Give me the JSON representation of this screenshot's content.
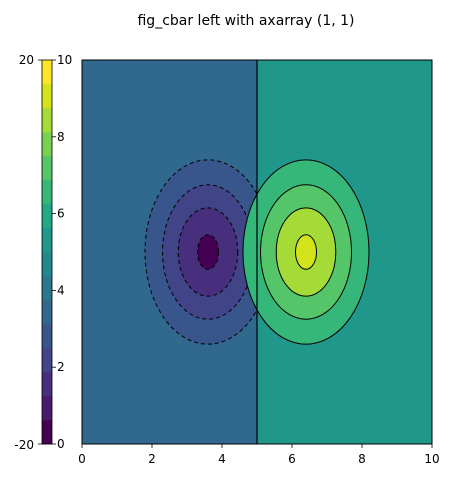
{
  "chart_data": {
    "type": "contour",
    "title": "fig_cbar left with axarray (1, 1)",
    "xlabel": "",
    "ylabel": "",
    "xlim": [
      0,
      10
    ],
    "ylim": [
      0,
      10
    ],
    "x_ticks": [
      "0",
      "2",
      "4",
      "6",
      "8",
      "10"
    ],
    "y_ticks": [
      "0",
      "2",
      "4",
      "6",
      "8",
      "10"
    ],
    "grid": false,
    "colorbar": {
      "position": "left",
      "range": [
        -20,
        20
      ],
      "tick_labels_left": [
        "20",
        "-20"
      ],
      "levels": [
        -20,
        -17.5,
        -15,
        -12.5,
        -10,
        -7.5,
        -5,
        -2.5,
        0,
        2.5,
        5,
        7.5,
        10,
        12.5,
        15,
        17.5,
        20
      ],
      "colors": [
        "#440154",
        "#481a6c",
        "#472f7d",
        "#414487",
        "#39568c",
        "#31688e",
        "#2a788e",
        "#23888e",
        "#1f988b",
        "#22a884",
        "#35b779",
        "#54c568",
        "#7ad151",
        "#a5db36",
        "#d2e21b",
        "#fde725"
      ]
    },
    "field": {
      "background_left": "#31688e",
      "background_right": "#1f988b",
      "divider_x": 5,
      "negative_lobe": {
        "center": [
          3.6,
          5.0
        ],
        "contours": [
          {
            "rx": 1.8,
            "ry": 2.4,
            "fill": "#39568c"
          },
          {
            "rx": 1.3,
            "ry": 1.75,
            "fill": "#414487"
          },
          {
            "rx": 0.85,
            "ry": 1.15,
            "fill": "#472f7d"
          },
          {
            "rx": 0.3,
            "ry": 0.45,
            "fill": "#440154"
          }
        ],
        "line_style": "dashed"
      },
      "positive_lobe": {
        "center": [
          6.4,
          5.0
        ],
        "contours": [
          {
            "rx": 1.8,
            "ry": 2.4,
            "fill": "#35b779"
          },
          {
            "rx": 1.3,
            "ry": 1.75,
            "fill": "#54c568"
          },
          {
            "rx": 0.85,
            "ry": 1.15,
            "fill": "#a5db36"
          },
          {
            "rx": 0.3,
            "ry": 0.45,
            "fill": "#d2e21b"
          }
        ],
        "line_style": "solid"
      }
    }
  }
}
